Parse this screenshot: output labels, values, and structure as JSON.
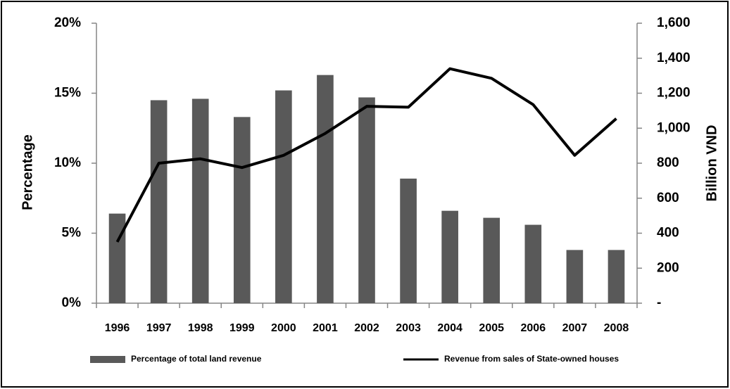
{
  "chart_data": {
    "type": "bar",
    "y_label": "Percentage",
    "y2_label": "Billion VND",
    "categories": [
      "1996",
      "1997",
      "1998",
      "1999",
      "2000",
      "2001",
      "2002",
      "2003",
      "2004",
      "2005",
      "2006",
      "2007",
      "2008"
    ],
    "series": [
      {
        "name": "Percentage of total land revenue",
        "type": "bar",
        "axis": "y",
        "color": "#595959",
        "values": [
          6.4,
          14.5,
          14.6,
          13.3,
          15.2,
          16.3,
          14.7,
          8.9,
          6.6,
          6.1,
          5.6,
          3.8,
          3.8
        ]
      },
      {
        "name": "Revenue from sales of State-owned houses",
        "type": "line",
        "axis": "y2",
        "color": "#000000",
        "values": [
          350,
          800,
          825,
          775,
          845,
          970,
          1125,
          1120,
          1340,
          1285,
          1135,
          845,
          1055
        ]
      }
    ],
    "ylim": [
      0,
      20
    ],
    "yticks": [
      {
        "value": 0,
        "label": "0%"
      },
      {
        "value": 5,
        "label": "5%"
      },
      {
        "value": 10,
        "label": "10%"
      },
      {
        "value": 15,
        "label": "15%"
      },
      {
        "value": 20,
        "label": "20%"
      }
    ],
    "y2lim": [
      0,
      1600
    ],
    "y2ticks": [
      {
        "value": 0,
        "label": "-"
      },
      200,
      400,
      600,
      800,
      {
        "value": 1000,
        "label": "1,000"
      },
      {
        "value": 1200,
        "label": "1,200"
      },
      {
        "value": 1400,
        "label": "1,400"
      },
      {
        "value": 1600,
        "label": "1,600"
      }
    ],
    "legend": "bottom"
  }
}
